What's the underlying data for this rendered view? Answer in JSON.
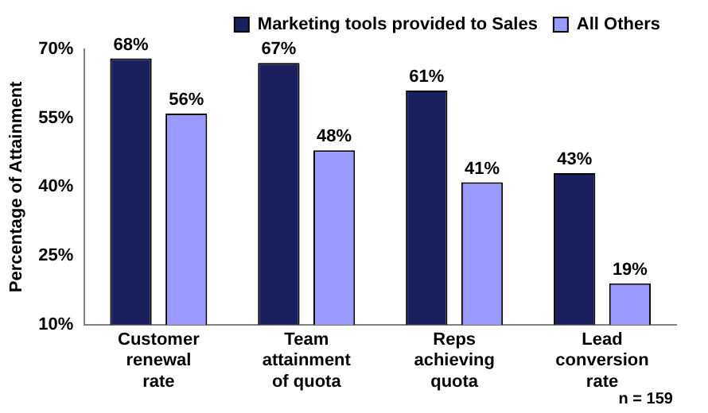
{
  "chart_data": {
    "type": "bar",
    "ylabel": "Percentage of Attainment",
    "categories": [
      "Customer renewal rate",
      "Team attainment of quota",
      "Reps achieving quota",
      "Lead conversion rate"
    ],
    "series": [
      {
        "name": "Marketing tools provided to Sales",
        "color": "#1c1f5e",
        "values": [
          68,
          67,
          61,
          43
        ],
        "value_labels": [
          "68%",
          "67%",
          "61%",
          "43%"
        ]
      },
      {
        "name": "All Others",
        "color": "#9999ff",
        "values": [
          56,
          48,
          41,
          19
        ],
        "value_labels": [
          "56%",
          "48%",
          "41%",
          "19%"
        ]
      }
    ],
    "ylim": [
      10,
      70
    ],
    "yticks": [
      {
        "value": 10,
        "label": "10%"
      },
      {
        "value": 25,
        "label": "25%"
      },
      {
        "value": 40,
        "label": "40%"
      },
      {
        "value": 55,
        "label": "55%"
      },
      {
        "value": 70,
        "label": "70%"
      }
    ],
    "grid": false,
    "legend": "top",
    "annotations": [
      "n = 159"
    ]
  }
}
